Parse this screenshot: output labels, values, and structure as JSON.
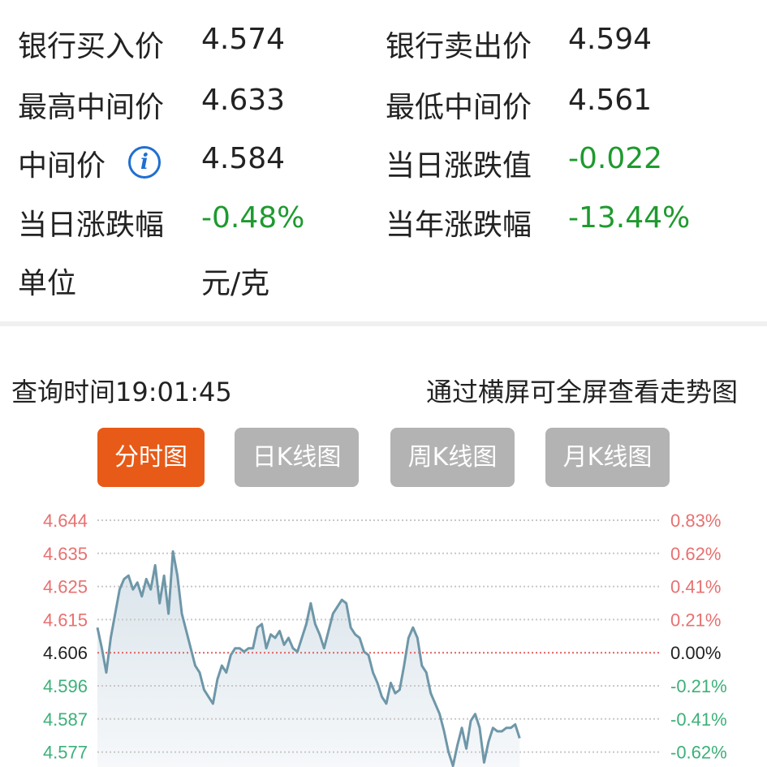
{
  "quote": {
    "rows": [
      {
        "l1": "银行买入价",
        "v1": "4.574",
        "l2": "银行卖出价",
        "v2": "4.594"
      },
      {
        "l1": "最高中间价",
        "v1": "4.633",
        "l2": "最低中间价",
        "v2": "4.561"
      },
      {
        "l1": "中间价",
        "v1": "4.584",
        "l2": "当日涨跌值",
        "v2": "-0.022"
      },
      {
        "l1": "当日涨跌幅",
        "v1": "-0.48%",
        "l2": "当年涨跌幅",
        "v2": "-13.44%"
      },
      {
        "l1": "单位",
        "v1": "元/克"
      }
    ],
    "info_icon": "info-icon"
  },
  "query_time": "查询时间19:01:45",
  "landscape_hint": "通过横屏可全屏查看走势图",
  "tabs": [
    {
      "label": "分时图",
      "active": true
    },
    {
      "label": "日K线图"
    },
    {
      "label": "周K线图"
    },
    {
      "label": "月K线图"
    }
  ],
  "colors": {
    "up": "#e87070",
    "down": "#3db07a",
    "neutral": "#222222",
    "line": "#6e97a8",
    "active_tab": "#e85a17",
    "green_value": "#1e9a2e"
  },
  "chart_data": {
    "type": "area",
    "left_ticks": [
      "4.644",
      "4.635",
      "4.625",
      "4.615",
      "4.606",
      "4.596",
      "4.587",
      "4.577"
    ],
    "right_ticks": [
      "0.83%",
      "0.62%",
      "0.41%",
      "0.21%",
      "0.00%",
      "-0.21%",
      "-0.41%",
      "-0.62%"
    ],
    "baseline": 4.606,
    "grid": true,
    "values": [
      4.613,
      4.607,
      4.6,
      4.61,
      4.617,
      4.624,
      4.627,
      4.628,
      4.624,
      4.626,
      4.622,
      4.627,
      4.624,
      4.631,
      4.62,
      4.628,
      4.617,
      4.635,
      4.628,
      4.617,
      4.612,
      4.607,
      4.602,
      4.6,
      4.595,
      4.593,
      4.591,
      4.598,
      4.602,
      4.6,
      4.605,
      4.607,
      4.607,
      4.606,
      4.607,
      4.607,
      4.613,
      4.614,
      4.607,
      4.611,
      4.61,
      4.612,
      4.608,
      4.61,
      4.607,
      4.606,
      4.61,
      4.614,
      4.62,
      4.614,
      4.611,
      4.607,
      4.612,
      4.617,
      4.619,
      4.621,
      4.62,
      4.613,
      4.611,
      4.61,
      4.606,
      4.605,
      4.6,
      4.597,
      4.593,
      4.591,
      4.597,
      4.594,
      4.595,
      4.602,
      4.61,
      4.613,
      4.61,
      4.602,
      4.6,
      4.594,
      4.591,
      4.588,
      4.583,
      4.577,
      4.573,
      4.579,
      4.584,
      4.578,
      4.586,
      4.588,
      4.584,
      4.574,
      4.58,
      4.584,
      4.583,
      4.583,
      4.584,
      4.584,
      4.585,
      4.581
    ]
  }
}
